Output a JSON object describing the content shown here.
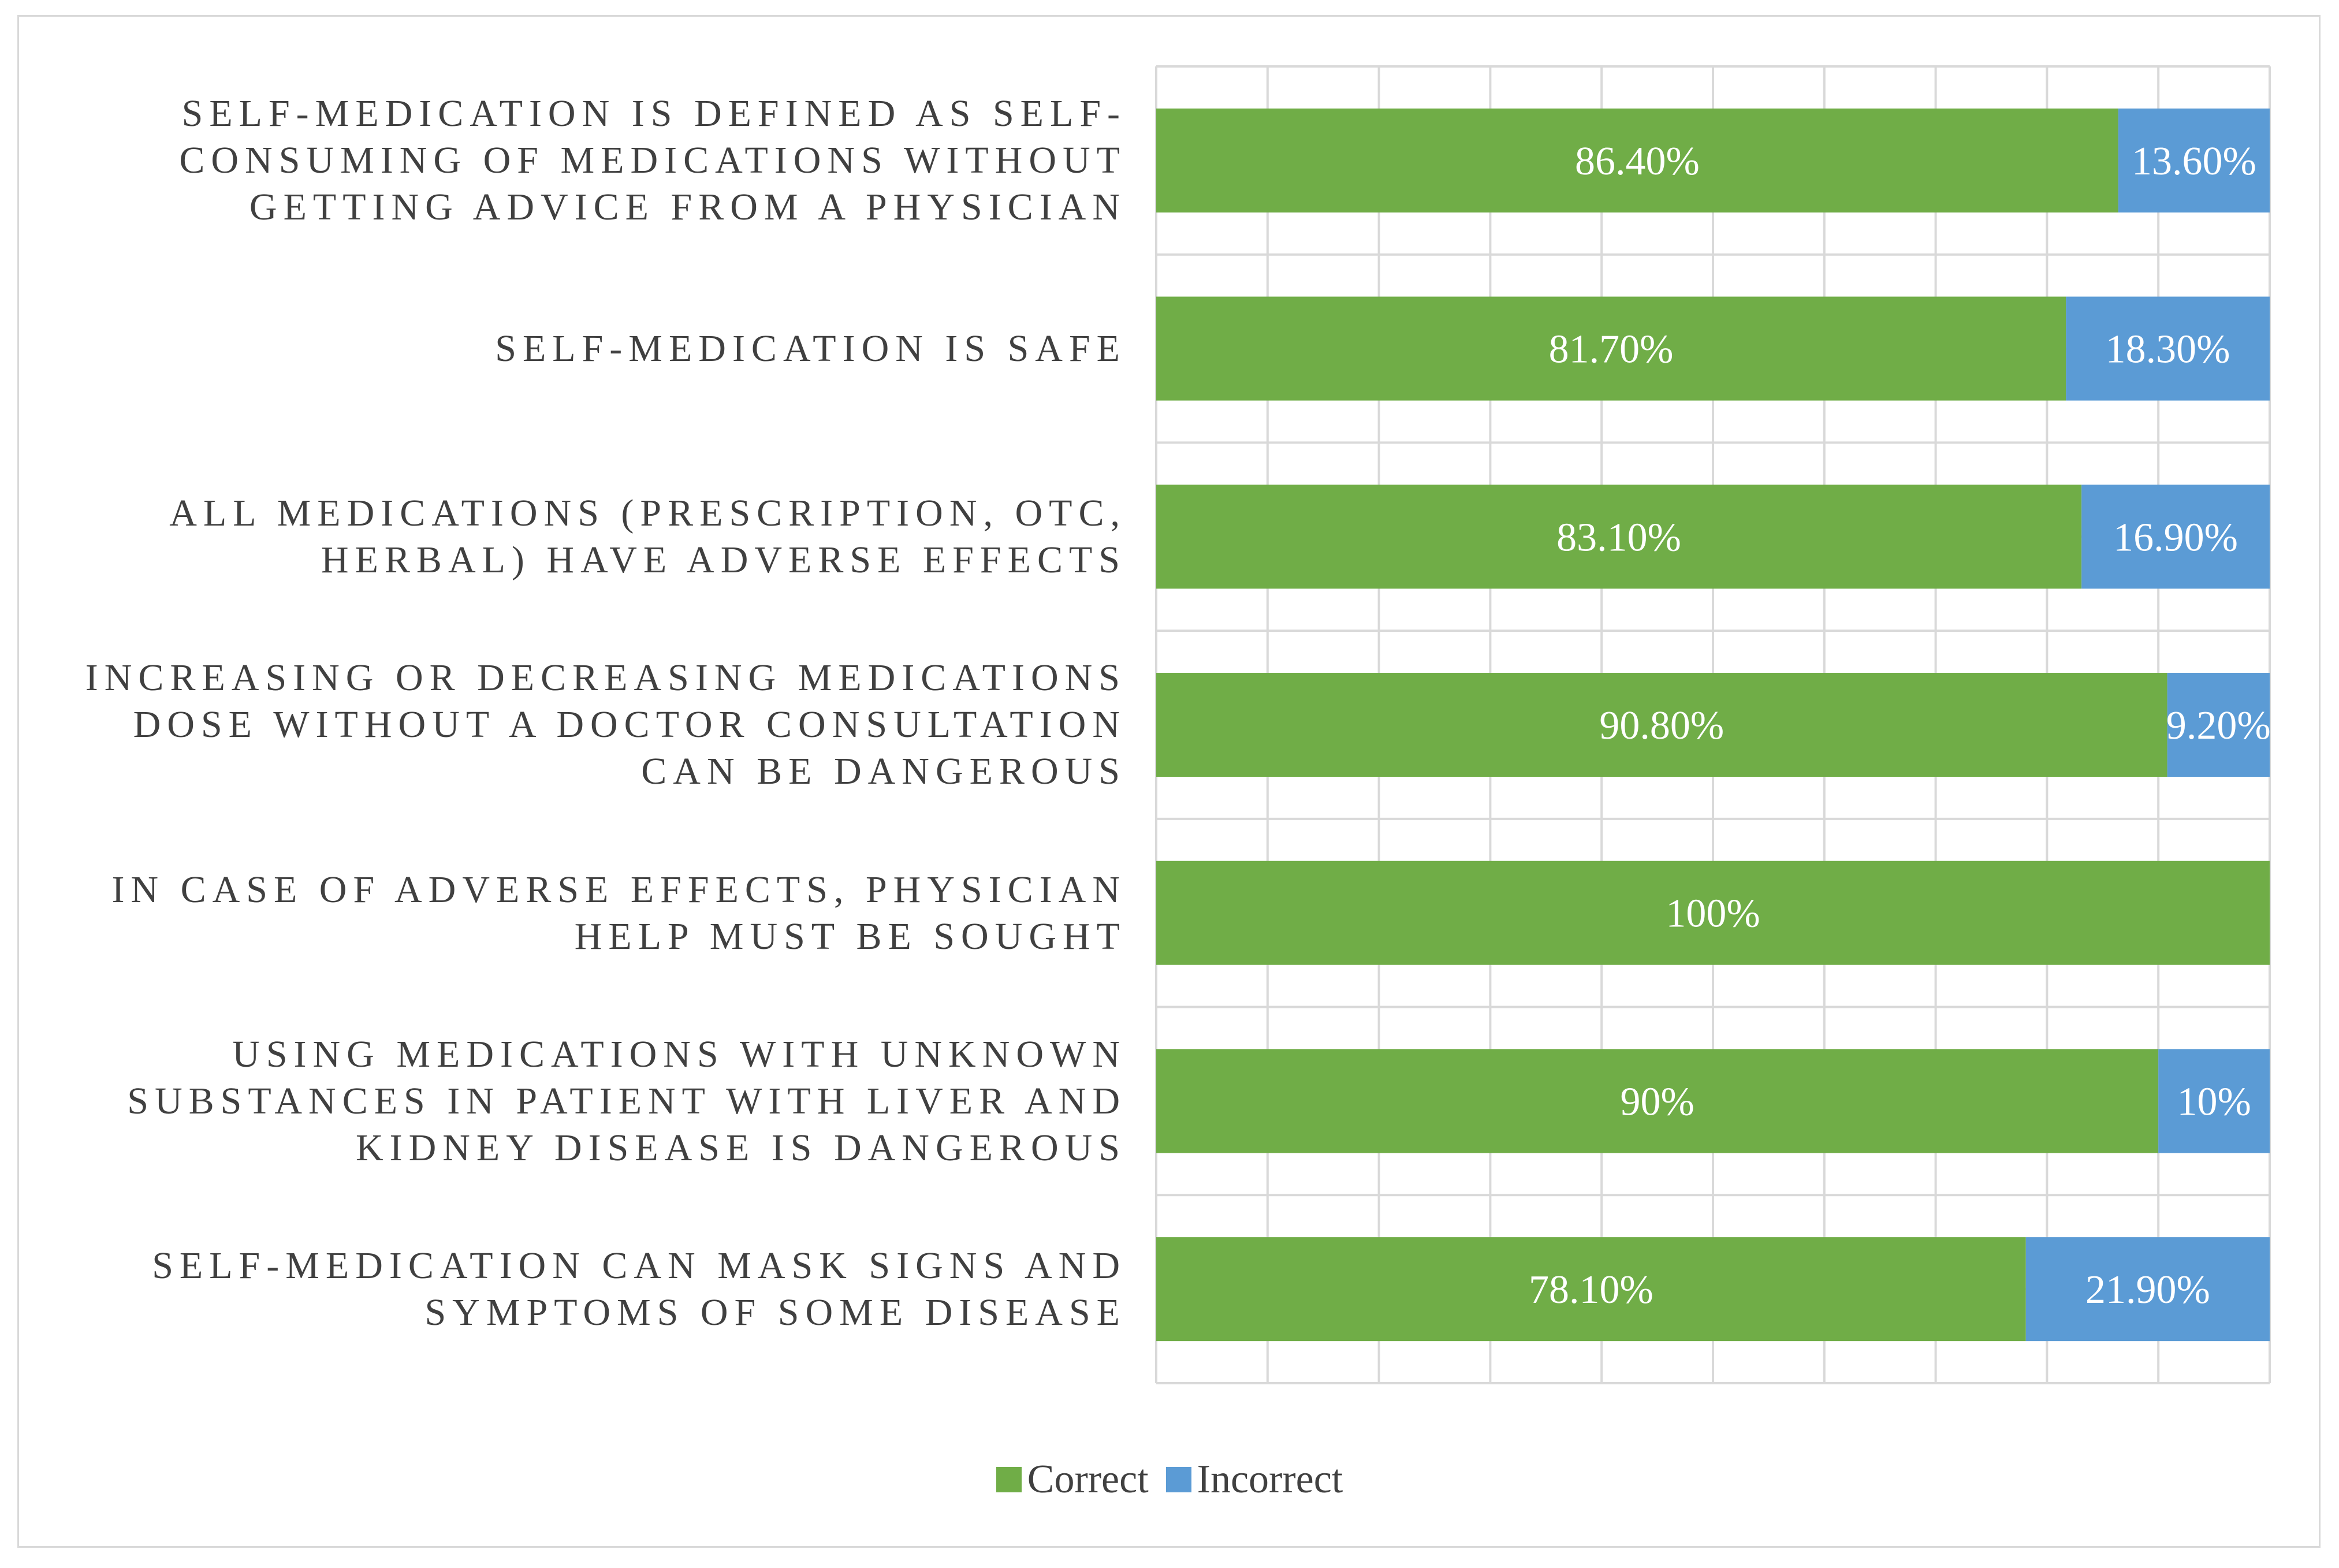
{
  "chart_data": {
    "type": "bar",
    "orientation": "horizontal",
    "stacked": true,
    "categories": [
      "Self-medication is defined as self-consuming of medications without getting advice from a physician",
      "Self-medication is safe",
      "All medications (prescription, OTC, herbal) have adverse effects",
      "Increasing or decreasing medications dose without a doctor consultation can be dangerous",
      "In case of adverse effects, physician help must be sought",
      "Using medications with unknown substances in patient with liver and kidney disease is dangerous",
      "Self-medication can mask signs and symptoms of some disease"
    ],
    "series": [
      {
        "name": "Correct",
        "color": "#70ad47",
        "values": [
          86.4,
          81.7,
          83.1,
          90.8,
          100,
          90,
          78.1
        ],
        "labels": [
          "86.40%",
          "81.70%",
          "83.10%",
          "90.80%",
          "100%",
          "90%",
          "78.10%"
        ]
      },
      {
        "name": "Incorrect",
        "color": "#5b9bd5",
        "values": [
          13.6,
          18.3,
          16.9,
          9.2,
          0,
          10,
          21.9
        ],
        "labels": [
          "13.60%",
          "18.30%",
          "16.90%",
          "9.20%",
          "",
          "10%",
          "21.90%"
        ]
      }
    ],
    "xlim": [
      0,
      100
    ],
    "grid": true,
    "legend_position": "bottom"
  }
}
